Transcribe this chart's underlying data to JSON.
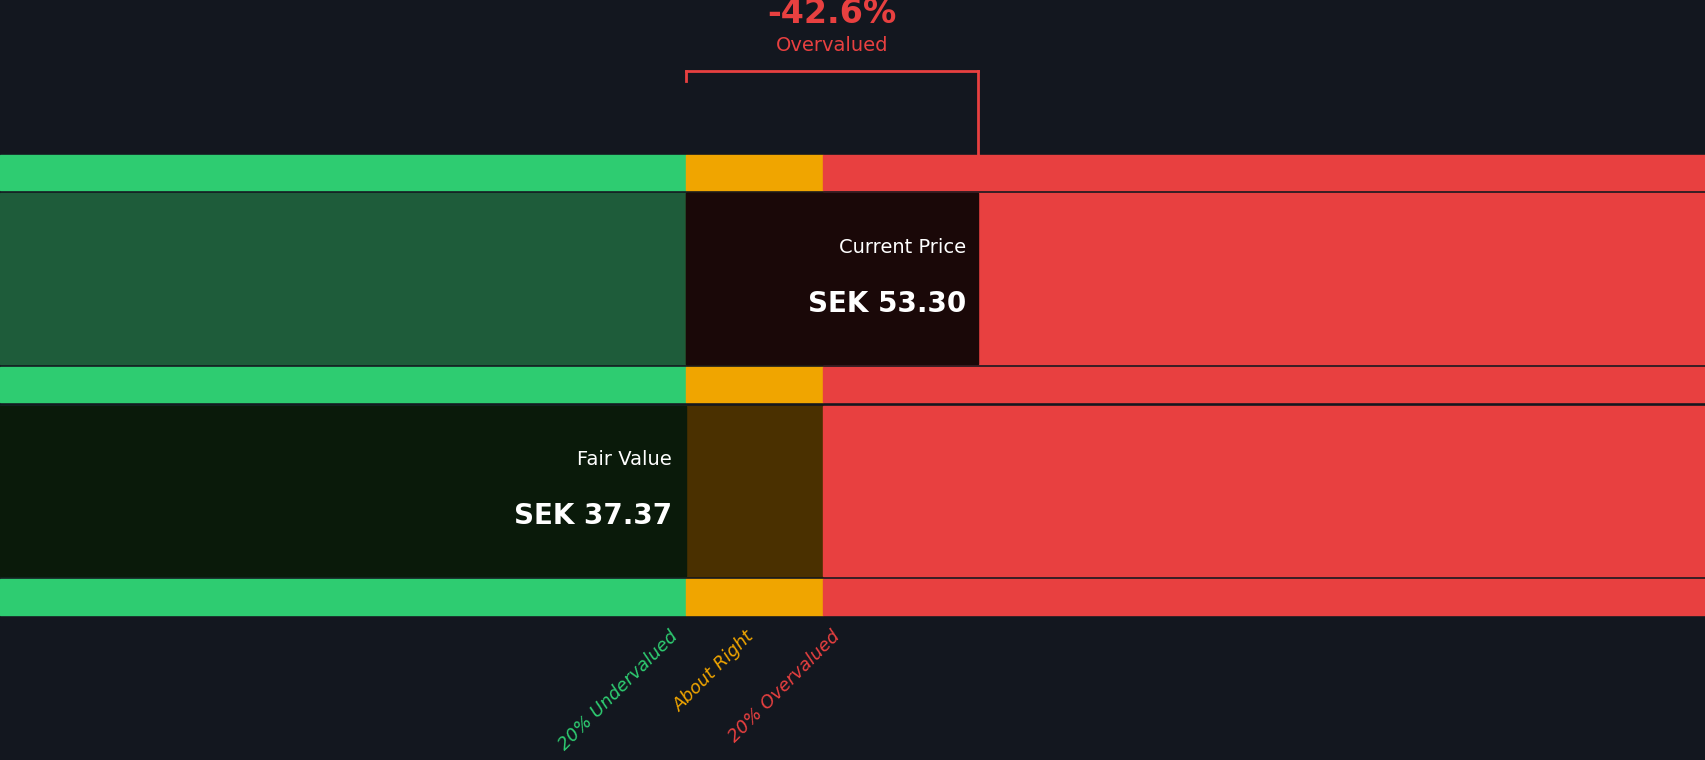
{
  "background_color": "#13171f",
  "fair_value": 37.37,
  "current_price": 53.3,
  "x_max": 93.0,
  "undervalued_boundary": 29.9,
  "overvalued_boundary": 44.84,
  "green_bright": "#2ecc71",
  "green_dark": "#1e5c3a",
  "yellow_bright": "#f0a500",
  "yellow_dark": "#4a3000",
  "red_color": "#e84040",
  "ann_box_dark": "#1a0a0a",
  "pct_label": "-42.6%",
  "pct_sublabel": "Overvalued",
  "fair_value_label": "Fair Value",
  "fair_value_text": "SEK 37.37",
  "current_price_label": "Current Price",
  "current_price_text": "SEK 53.30",
  "label_undervalued": "20% Undervalued",
  "label_about_right": "About Right",
  "label_overvalued": "20% Overvalued"
}
